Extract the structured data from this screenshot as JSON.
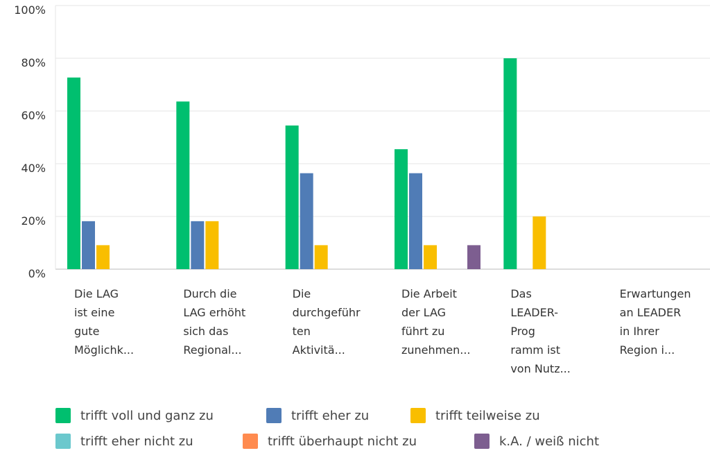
{
  "chart_data": {
    "type": "bar",
    "categories": [
      "Die LAG\nist eine\ngute\nMöglichk...",
      "Durch die\nLAG erhöht\nsich das\nRegional...",
      "Die\ndurchgeführ\nten\nAktivitä...",
      "Die Arbeit\nder LAG\nführt zu\nzunehmen...",
      "Das\nLEADER-\nProg\nramm ist\nvon Nutz...",
      "Erwartungen\nan LEADER\nin Ihrer\nRegion i..."
    ],
    "series": [
      {
        "name": "trifft voll und ganz zu",
        "color": "#00bf6f",
        "values": [
          72.7,
          63.6,
          54.5,
          45.5,
          80,
          0
        ]
      },
      {
        "name": "trifft eher zu",
        "color": "#507cb6",
        "values": [
          18.2,
          18.2,
          36.4,
          36.4,
          0,
          0
        ]
      },
      {
        "name": "trifft teilweise zu",
        "color": "#f9be00",
        "values": [
          9.1,
          18.2,
          9.1,
          9.1,
          20,
          0
        ]
      },
      {
        "name": "trifft eher nicht zu",
        "color": "#6bc8cd",
        "values": [
          0,
          0,
          0,
          0,
          0,
          0
        ]
      },
      {
        "name": "trifft überhaupt nicht zu",
        "color": "#ff8b4f",
        "values": [
          0,
          0,
          0,
          0,
          0,
          0
        ]
      },
      {
        "name": "k.A. / weiß nicht",
        "color": "#7d5e90",
        "values": [
          0,
          0,
          0,
          9.1,
          0,
          0
        ]
      }
    ],
    "ylim": [
      0,
      100
    ],
    "yticks": [
      {
        "value": 0,
        "label": "0%"
      },
      {
        "value": 20,
        "label": "20%"
      },
      {
        "value": 40,
        "label": "40%"
      },
      {
        "value": 60,
        "label": "60%"
      },
      {
        "value": 80,
        "label": "80%"
      },
      {
        "value": 100,
        "label": "100%"
      }
    ],
    "grid": true
  }
}
